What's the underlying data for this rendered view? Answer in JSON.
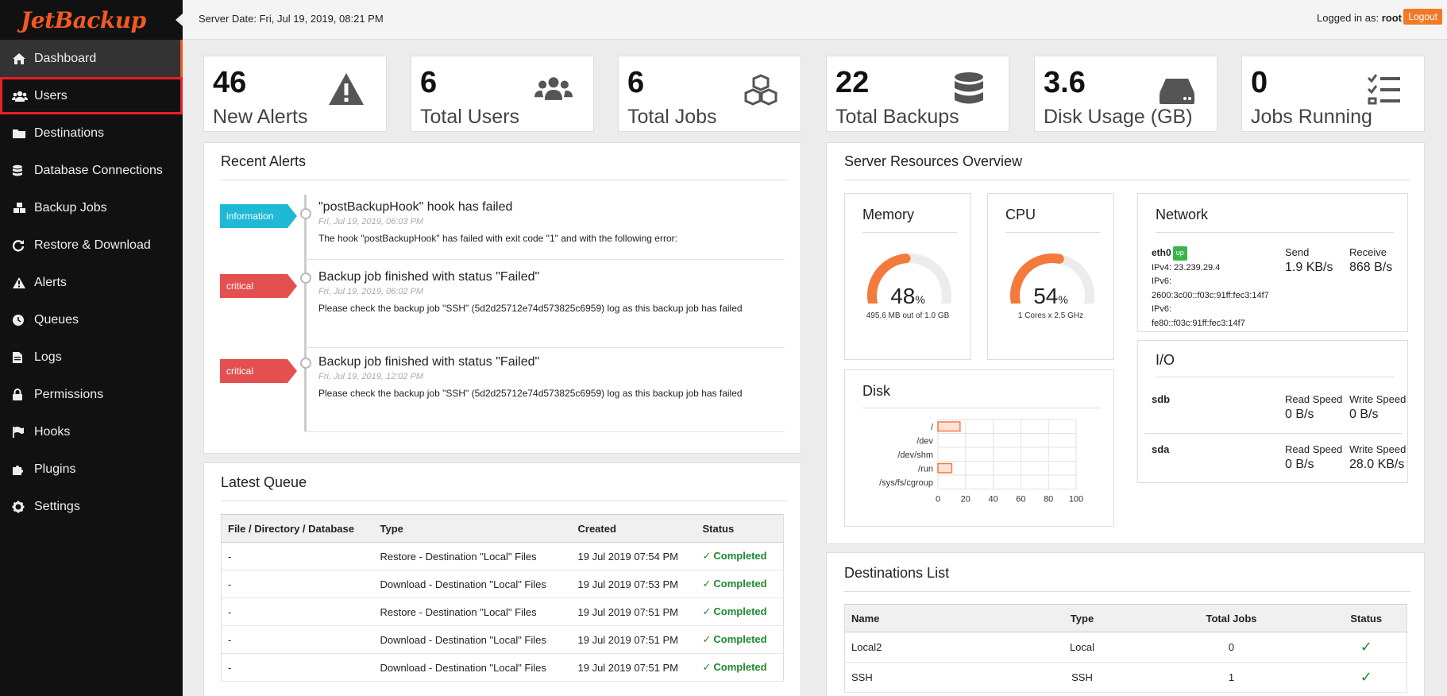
{
  "brand": {
    "name": "JetBackup",
    "accent": "#f05a22"
  },
  "sidebar": {
    "items": [
      {
        "label": "Dashboard",
        "icon": "home-icon"
      },
      {
        "label": "Users",
        "icon": "users-icon"
      },
      {
        "label": "Destinations",
        "icon": "folder-icon"
      },
      {
        "label": "Database Connections",
        "icon": "database-icon"
      },
      {
        "label": "Backup Jobs",
        "icon": "cubes-icon"
      },
      {
        "label": "Restore & Download",
        "icon": "refresh-icon"
      },
      {
        "label": "Alerts",
        "icon": "warning-icon"
      },
      {
        "label": "Queues",
        "icon": "clock-icon"
      },
      {
        "label": "Logs",
        "icon": "file-icon"
      },
      {
        "label": "Permissions",
        "icon": "lock-icon"
      },
      {
        "label": "Hooks",
        "icon": "flag-icon"
      },
      {
        "label": "Plugins",
        "icon": "puzzle-icon"
      },
      {
        "label": "Settings",
        "icon": "gear-icon"
      }
    ]
  },
  "topbar": {
    "server_date": "Server Date: Fri, Jul 19, 2019, 08:21 PM",
    "logged_in_prefix": "Logged in as:",
    "user": "root",
    "separator": "|",
    "logout_label": "Logout"
  },
  "stats": [
    {
      "value": "46",
      "label": "New Alerts",
      "icon": "warning-icon"
    },
    {
      "value": "6",
      "label": "Total Users",
      "icon": "users-icon"
    },
    {
      "value": "6",
      "label": "Total Jobs",
      "icon": "cubes-icon"
    },
    {
      "value": "22",
      "label": "Total Backups",
      "icon": "database-icon"
    },
    {
      "value": "3.6",
      "label": "Disk Usage (GB)",
      "icon": "hdd-icon"
    },
    {
      "value": "0",
      "label": "Jobs Running",
      "icon": "tasks-icon"
    }
  ],
  "recent_alerts": {
    "title": "Recent Alerts",
    "items": [
      {
        "level": "information",
        "title": "\"postBackupHook\" hook has failed",
        "time": "Fri, Jul 19, 2019, 06:03 PM",
        "message": "The hook \"postBackupHook\" has failed with exit code \"1\" and with the following error:"
      },
      {
        "level": "critical",
        "title": "Backup job finished with status \"Failed\"",
        "time": "Fri, Jul 19, 2019, 06:02 PM",
        "message": "Please check the backup job \"SSH\" (5d2d25712e74d573825c6959) log as this backup job has failed"
      },
      {
        "level": "critical",
        "title": "Backup job finished with status \"Failed\"",
        "time": "Fri, Jul 19, 2019, 12:02 PM",
        "message": "Please check the backup job \"SSH\" (5d2d25712e74d573825c6959) log as this backup job has failed"
      }
    ]
  },
  "latest_queue": {
    "title": "Latest Queue",
    "columns": [
      "File / Directory / Database",
      "Type",
      "Created",
      "Status"
    ],
    "rows": [
      {
        "item": "-",
        "type": "Restore - Destination \"Local\" Files",
        "created": "19 Jul 2019 07:54 PM",
        "status": "Completed"
      },
      {
        "item": "-",
        "type": "Download - Destination \"Local\" Files",
        "created": "19 Jul 2019 07:53 PM",
        "status": "Completed"
      },
      {
        "item": "-",
        "type": "Restore - Destination \"Local\" Files",
        "created": "19 Jul 2019 07:51 PM",
        "status": "Completed"
      },
      {
        "item": "-",
        "type": "Download - Destination \"Local\" Files",
        "created": "19 Jul 2019 07:51 PM",
        "status": "Completed"
      },
      {
        "item": "-",
        "type": "Download - Destination \"Local\" Files",
        "created": "19 Jul 2019 07:51 PM",
        "status": "Completed"
      }
    ]
  },
  "server_resources": {
    "title": "Server Resources Overview",
    "memory": {
      "title": "Memory",
      "percent": 48,
      "value": "48",
      "unit": "%",
      "detail": "495.6 MB out of 1.0 GB"
    },
    "cpu": {
      "title": "CPU",
      "percent": 54,
      "value": "54",
      "unit": "%",
      "detail": "1 Cores x 2.5 GHz"
    },
    "network": {
      "title": "Network",
      "interface": "eth0",
      "state": "up",
      "ipv4": "IPv4: 23.239.29.4",
      "ipv6_label_1": "IPv6:",
      "ipv6_1": "2600:3c00::f03c:91ff:fec3:14f7",
      "ipv6_label_2": "IPv6:",
      "ipv6_2": "fe80::f03c:91ff:fec3:14f7",
      "send_label": "Send",
      "send_value": "1.9 KB/s",
      "receive_label": "Receive",
      "receive_value": "868 B/s"
    },
    "io": {
      "title": "I/O",
      "devices": [
        {
          "name": "sdb",
          "read_label": "Read Speed",
          "read_value": "0 B/s",
          "write_label": "Write Speed",
          "write_value": "0 B/s"
        },
        {
          "name": "sda",
          "read_label": "Read Speed",
          "read_value": "0 B/s",
          "write_label": "Write Speed",
          "write_value": "28.0 KB/s"
        }
      ]
    },
    "disk": {
      "title": "Disk",
      "chart_data": {
        "type": "bar",
        "orientation": "horizontal",
        "categories": [
          "/",
          "/dev",
          "/dev/shm",
          "/run",
          "/sys/fs/cgroup"
        ],
        "values": [
          16,
          0,
          0,
          10,
          0
        ],
        "xlim": [
          0,
          100
        ],
        "xticks": [
          "0",
          "20",
          "40",
          "60",
          "80",
          "100"
        ],
        "grid": true,
        "bar_color": "#f27a45"
      }
    }
  },
  "destinations": {
    "title": "Destinations List",
    "columns": [
      "Name",
      "Type",
      "Total Jobs",
      "Status"
    ],
    "rows": [
      {
        "name": "Local2",
        "type": "Local",
        "jobs": "0",
        "status": "ok"
      },
      {
        "name": "SSH",
        "type": "SSH",
        "jobs": "1",
        "status": "ok"
      }
    ]
  }
}
